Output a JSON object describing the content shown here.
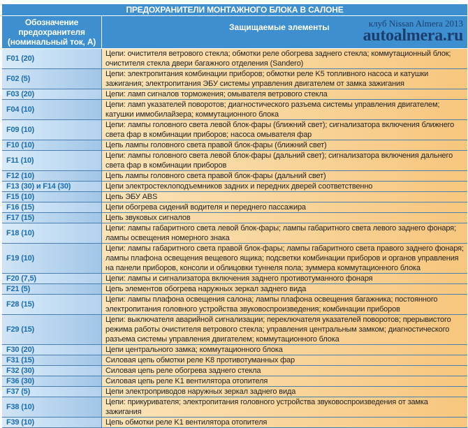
{
  "title": "ПРЕДОХРАНИТЕЛИ МОНТАЖНОГО БЛОКА В САЛОНЕ",
  "header": {
    "col1": [
      "Обозначение",
      "предохранителя",
      "(номинальный ток, А)"
    ],
    "col2": "Защищаемые элементы"
  },
  "watermark": {
    "line1": "клуб Nissan Almera 2013",
    "line2": "autoalmera.ru"
  },
  "rows": [
    {
      "code": "F01 (20)",
      "desc": "Цепи: очистителя ветрового стекла; обмотки реле обогрева заднего стекла; коммутационный блок; очистителя стекла двери багажного отделения (Sandero)"
    },
    {
      "code": "F02 (5)",
      "desc": "Цепи: электропитания комбинации приборов; обмотки реле K5 топливного насоса и катушки зажигания; электропитания ЭБУ системы управления двигателем от замка зажигания"
    },
    {
      "code": "F03 (20)",
      "desc": "Цепи: ламп сигналов торможения; омывателя ветрового стекла"
    },
    {
      "code": "F04 (10)",
      "desc": "Цепи: ламп указателей поворотов; диагностического разъема системы управления двигателем; катушки иммобилайзера; коммутационного блока"
    },
    {
      "code": "F09 (10)",
      "desc": "Цепи: лампы головного света левой блок-фары (ближний свет); сигнализатора включения ближнего света фар в комбинации приборов; насоса омывателя фар"
    },
    {
      "code": "F10 (10)",
      "desc": "Цепь лампы головного света правой блок-фары (ближний свет)"
    },
    {
      "code": "F11 (10)",
      "desc": "Цепи: лампы головного света левой блок-фары (дальний свет); сигнализатора включения дальнего света фар в комбинации приборов"
    },
    {
      "code": "F12 (10)",
      "desc": "Цепь лампы головного света правой блок-фары (дальний свет)"
    },
    {
      "code": "F13 (30) и F14 (30)",
      "desc": "Цепи электростеклоподъемников задних и передних дверей соответственно"
    },
    {
      "code": "F15 (10)",
      "desc": "Цепь ЭБУ ABS"
    },
    {
      "code": "F16 (15)",
      "desc": "Цепи обогрева сидений водителя и переднего пассажира"
    },
    {
      "code": "F17 (15)",
      "desc": "Цепь звуковых сигналов"
    },
    {
      "code": "F18 (10)",
      "desc": "Цепи: лампы габаритного света левой блок-фары; лампы габаритного света левого заднего фонаря; лампы освещения номерного знака"
    },
    {
      "code": "F19 (10)",
      "desc": "Цепи: лампы габаритного света правой блок-фары; лампы габаритного света правого заднего фонаря; лампы плафона освещения вещевого ящика; подсветки комбинации приборов и органов управления на панели приборов, консоли и облицовки туннеля пола; зуммера коммутационного блока"
    },
    {
      "code": "F20 (7,5)",
      "desc": "Цепи: лампы и сигнализатора включения заднего противотуманного фонаря"
    },
    {
      "code": "F21 (5)",
      "desc": "Цепь элементов обогрева наружных зеркал заднего вида"
    },
    {
      "code": "F28 (15)",
      "desc": "Цепи: лампы плафона освещения салона; лампы плафона освещения багажника; постоянного электропитания головного устройства звуковоспроизведения; комбинации приборов"
    },
    {
      "code": "F29 (15)",
      "desc": "Цепи: выключателя аварийной сигнализации; переключателя указателей поворотов; прерывистого режима работы очистителя ветрового стекла; управления центральным замком; диагностического разъема системы управления двигателем; коммутационного блока"
    },
    {
      "code": "F30 (20)",
      "desc": "Цепи центрального замка; коммутационного блока"
    },
    {
      "code": "F31 (15)",
      "desc": "Силовая цепь обмотки реле K8 противотуманных фар"
    },
    {
      "code": "F32 (30)",
      "desc": "Силовая цепь реле обогрева заднего стекла"
    },
    {
      "code": "F36 (30)",
      "desc": "Силовая цепь реле K1 вентилятора отопителя"
    },
    {
      "code": "F37 (5)",
      "desc": "Цепи электроприводов наружных зеркал заднего вида"
    },
    {
      "code": "F38 (10)",
      "desc": "Цепи: прикуривателя; электропитания головного устройства звуковоспроизведения от замка зажигания"
    },
    {
      "code": "F39 (10)",
      "desc": "Цепь обмотки реле K1 вентилятора отопителя"
    }
  ]
}
